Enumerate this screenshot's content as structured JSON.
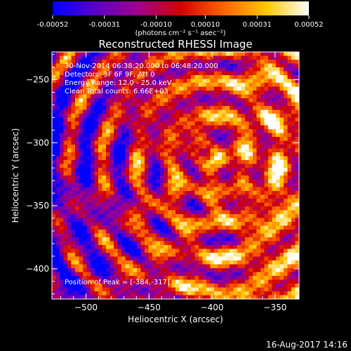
{
  "chart_data": {
    "type": "heatmap",
    "title": "Reconstructed RHESSI Image",
    "xlabel": "Heliocentric X (arcsec)",
    "ylabel": "Heliocentric Y (arcsec)",
    "xlim": [
      -527,
      -331
    ],
    "ylim": [
      -424,
      -228
    ],
    "x_ticks": [
      -500,
      -450,
      -400,
      -350
    ],
    "y_ticks": [
      -250,
      -300,
      -350,
      -400
    ],
    "colorbar": {
      "label": "(photons cm⁻² s⁻¹ asec⁻²)",
      "range": [
        -0.00052,
        0.00052
      ],
      "ticks": [
        -0.00052,
        -0.00031,
        -0.0001,
        0.0001,
        0.00031,
        0.00052
      ],
      "tick_labels": [
        "-0.00052",
        "-0.00031",
        "-0.00010",
        "0.00010",
        "0.00031",
        "0.00052"
      ],
      "colors": [
        "#0000ff",
        "#5a00c8",
        "#a0008c",
        "#d20000",
        "#ff6400",
        "#ffc800",
        "#ffffff"
      ]
    },
    "info_lines": [
      "30-Nov-2014 06:38:20.000 to 06:48:20.000",
      "Detectors: 3F 6F 9F, Att 0",
      "Energy Range: 12.0 - 25.0 keV",
      "Clean    Total counts: 6.66E+03"
    ],
    "peak_text": "Position of Peak = [-384,-317]",
    "peak_position": [
      -384,
      -317
    ]
  },
  "footer_date": "16-Aug-2017 14:16"
}
